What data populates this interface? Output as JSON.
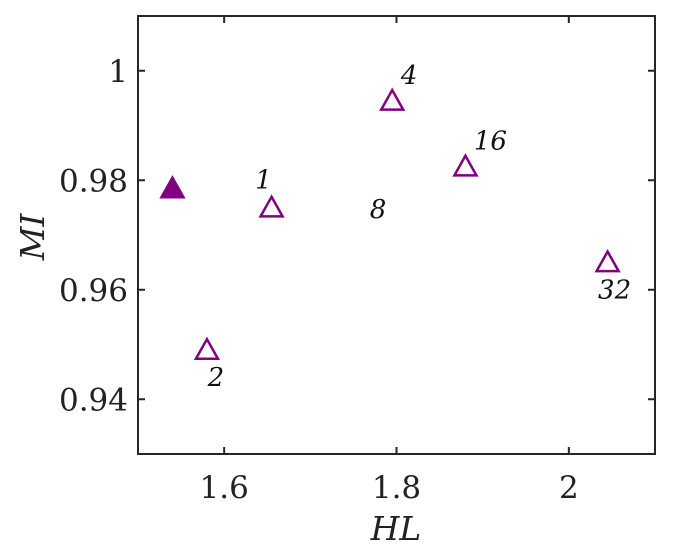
{
  "chart_data": {
    "type": "scatter",
    "title": "",
    "xlabel": "HL",
    "ylabel": "MI",
    "xlim": [
      1.5,
      2.1
    ],
    "ylim": [
      0.93,
      1.01
    ],
    "xticks": [
      1.6,
      1.8,
      2.0
    ],
    "xtick_labels": [
      "1.6",
      "1.8",
      "2"
    ],
    "yticks": [
      0.94,
      0.96,
      0.98,
      1.0
    ],
    "ytick_labels": [
      "0.94",
      "0.96",
      "0.98",
      "1"
    ],
    "grid": false,
    "marker_color": "#800080",
    "reference_point": {
      "x": 1.54,
      "y": 0.9785,
      "marker": "filled-triangle"
    },
    "points": [
      {
        "label": "1",
        "x": 1.655,
        "y": 0.975
      },
      {
        "label": "2",
        "x": 1.58,
        "y": 0.949
      },
      {
        "label": "4",
        "x": 1.795,
        "y": 0.9945
      },
      {
        "label": "8",
        "x": null,
        "y": null
      },
      {
        "label": "16",
        "x": 1.88,
        "y": 0.9825
      },
      {
        "label": "32",
        "x": 2.045,
        "y": 0.965
      }
    ]
  }
}
